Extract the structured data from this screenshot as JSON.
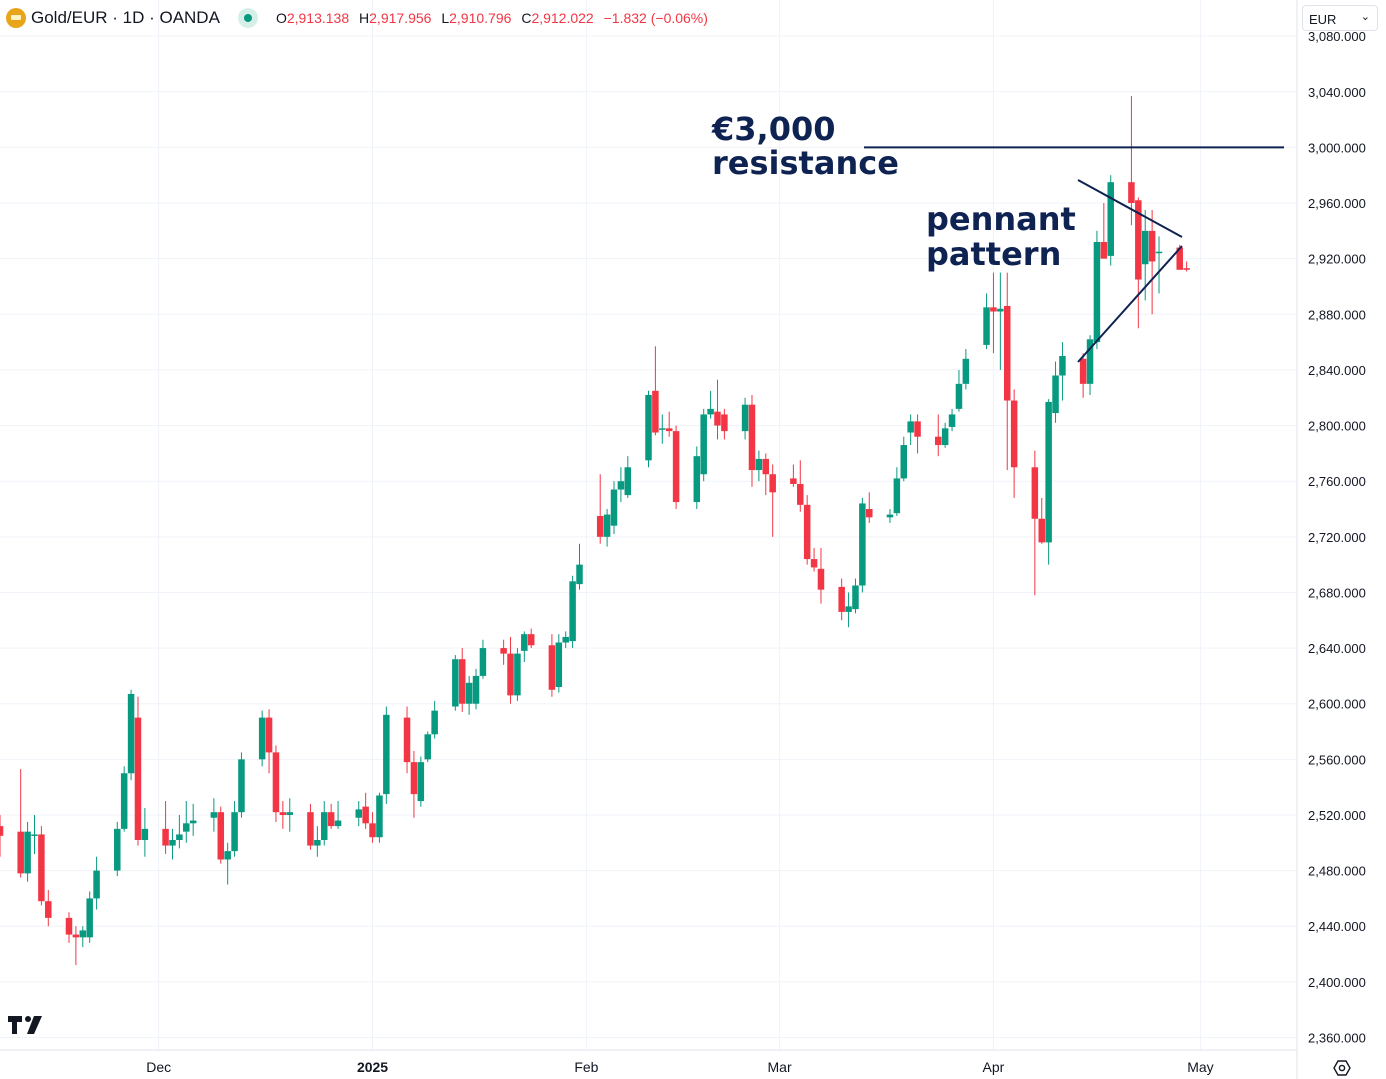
{
  "header": {
    "symbol_title": "Gold/EUR · 1D · OANDA",
    "open_label": "O",
    "open_value": "2,913.138",
    "high_label": "H",
    "high_value": "2,917.956",
    "low_label": "L",
    "low_value": "2,910.796",
    "close_label": "C",
    "close_value": "2,912.022",
    "change": "−1.832 (−0.06%)"
  },
  "currency_selector": {
    "value": "EUR"
  },
  "colors": {
    "up": "#089981",
    "down": "#f23645",
    "annotation": "#0f2353",
    "grid": "#f0f3fa",
    "axis_text": "#131722"
  },
  "icons": {
    "logo": "gold-coin-icon",
    "status": "market-status-icon",
    "brand": "tradingview-logo-icon",
    "settings": "settings-gear-icon",
    "dropdown": "chevron-down-icon"
  },
  "chart_data": {
    "type": "candlestick",
    "y_axis_labels": [
      "3,080.000",
      "3,040.000",
      "3,000.000",
      "2,960.000",
      "2,920.000",
      "2,880.000",
      "2,840.000",
      "2,800.000",
      "2,760.000",
      "2,720.000",
      "2,680.000",
      "2,640.000",
      "2,600.000",
      "2,560.000",
      "2,520.000",
      "2,480.000",
      "2,440.000",
      "2,400.000",
      "2,360.000"
    ],
    "y_ticks": [
      3080,
      3040,
      3000,
      2960,
      2920,
      2880,
      2840,
      2800,
      2760,
      2720,
      2680,
      2640,
      2600,
      2560,
      2520,
      2480,
      2440,
      2400,
      2360
    ],
    "ylim": [
      2351,
      3106
    ],
    "x_labels": [
      {
        "text": "Dec",
        "date": "2024-12-01",
        "bold": false
      },
      {
        "text": "2025",
        "date": "2025-01-01",
        "bold": true
      },
      {
        "text": "Feb",
        "date": "2025-02-01",
        "bold": false
      },
      {
        "text": "Mar",
        "date": "2025-03-01",
        "bold": false
      },
      {
        "text": "Apr",
        "date": "2025-04-01",
        "bold": false
      },
      {
        "text": "May",
        "date": "2025-05-01",
        "bold": false
      }
    ],
    "xlim": [
      "2024-11-08",
      "2025-05-15"
    ],
    "candles": [
      {
        "date": "2024-11-08",
        "o": 2512,
        "h": 2520,
        "l": 2490,
        "c": 2505
      },
      {
        "date": "2024-11-11",
        "o": 2508,
        "h": 2553,
        "l": 2475,
        "c": 2478
      },
      {
        "date": "2024-11-12",
        "o": 2478,
        "h": 2515,
        "l": 2472,
        "c": 2508
      },
      {
        "date": "2024-11-13",
        "o": 2505,
        "h": 2520,
        "l": 2492,
        "c": 2506
      },
      {
        "date": "2024-11-14",
        "o": 2506,
        "h": 2512,
        "l": 2455,
        "c": 2458
      },
      {
        "date": "2024-11-15",
        "o": 2458,
        "h": 2466,
        "l": 2440,
        "c": 2446
      },
      {
        "date": "2024-11-18",
        "o": 2446,
        "h": 2450,
        "l": 2428,
        "c": 2434
      },
      {
        "date": "2024-11-19",
        "o": 2434,
        "h": 2440,
        "l": 2412,
        "c": 2432
      },
      {
        "date": "2024-11-20",
        "o": 2432,
        "h": 2440,
        "l": 2425,
        "c": 2437
      },
      {
        "date": "2024-11-21",
        "o": 2432,
        "h": 2465,
        "l": 2428,
        "c": 2460
      },
      {
        "date": "2024-11-22",
        "o": 2460,
        "h": 2490,
        "l": 2452,
        "c": 2480
      },
      {
        "date": "2024-11-25",
        "o": 2480,
        "h": 2515,
        "l": 2476,
        "c": 2510
      },
      {
        "date": "2024-11-26",
        "o": 2510,
        "h": 2555,
        "l": 2508,
        "c": 2550
      },
      {
        "date": "2024-11-27",
        "o": 2550,
        "h": 2610,
        "l": 2545,
        "c": 2607
      },
      {
        "date": "2024-11-28",
        "o": 2590,
        "h": 2605,
        "l": 2498,
        "c": 2502
      },
      {
        "date": "2024-11-29",
        "o": 2502,
        "h": 2525,
        "l": 2490,
        "c": 2510
      },
      {
        "date": "2024-12-02",
        "o": 2510,
        "h": 2530,
        "l": 2492,
        "c": 2498
      },
      {
        "date": "2024-12-03",
        "o": 2498,
        "h": 2510,
        "l": 2488,
        "c": 2502
      },
      {
        "date": "2024-12-04",
        "o": 2502,
        "h": 2520,
        "l": 2496,
        "c": 2506
      },
      {
        "date": "2024-12-05",
        "o": 2508,
        "h": 2530,
        "l": 2500,
        "c": 2514
      },
      {
        "date": "2024-12-06",
        "o": 2514,
        "h": 2528,
        "l": 2505,
        "c": 2516
      },
      {
        "date": "2024-12-09",
        "o": 2518,
        "h": 2532,
        "l": 2508,
        "c": 2522
      },
      {
        "date": "2024-12-10",
        "o": 2522,
        "h": 2526,
        "l": 2485,
        "c": 2488
      },
      {
        "date": "2024-12-11",
        "o": 2488,
        "h": 2500,
        "l": 2470,
        "c": 2494
      },
      {
        "date": "2024-12-12",
        "o": 2494,
        "h": 2530,
        "l": 2490,
        "c": 2522
      },
      {
        "date": "2024-12-13",
        "o": 2522,
        "h": 2565,
        "l": 2518,
        "c": 2560
      },
      {
        "date": "2024-12-16",
        "o": 2560,
        "h": 2595,
        "l": 2555,
        "c": 2590
      },
      {
        "date": "2024-12-17",
        "o": 2590,
        "h": 2596,
        "l": 2550,
        "c": 2565
      },
      {
        "date": "2024-12-18",
        "o": 2565,
        "h": 2570,
        "l": 2515,
        "c": 2522
      },
      {
        "date": "2024-12-19",
        "o": 2522,
        "h": 2530,
        "l": 2510,
        "c": 2520
      },
      {
        "date": "2024-12-20",
        "o": 2520,
        "h": 2532,
        "l": 2508,
        "c": 2522
      },
      {
        "date": "2024-12-23",
        "o": 2522,
        "h": 2528,
        "l": 2495,
        "c": 2498
      },
      {
        "date": "2024-12-24",
        "o": 2498,
        "h": 2512,
        "l": 2490,
        "c": 2502
      },
      {
        "date": "2024-12-25",
        "o": 2502,
        "h": 2530,
        "l": 2498,
        "c": 2522
      },
      {
        "date": "2024-12-26",
        "o": 2522,
        "h": 2528,
        "l": 2510,
        "c": 2512
      },
      {
        "date": "2024-12-27",
        "o": 2512,
        "h": 2530,
        "l": 2510,
        "c": 2516
      },
      {
        "date": "2024-12-30",
        "o": 2518,
        "h": 2530,
        "l": 2512,
        "c": 2524
      },
      {
        "date": "2024-12-31",
        "o": 2526,
        "h": 2536,
        "l": 2510,
        "c": 2514
      },
      {
        "date": "2025-01-01",
        "o": 2514,
        "h": 2522,
        "l": 2500,
        "c": 2504
      },
      {
        "date": "2025-01-02",
        "o": 2504,
        "h": 2536,
        "l": 2500,
        "c": 2534
      },
      {
        "date": "2025-01-03",
        "o": 2535,
        "h": 2598,
        "l": 2528,
        "c": 2592
      },
      {
        "date": "2025-01-06",
        "o": 2590,
        "h": 2598,
        "l": 2550,
        "c": 2558
      },
      {
        "date": "2025-01-07",
        "o": 2558,
        "h": 2566,
        "l": 2518,
        "c": 2535
      },
      {
        "date": "2025-01-08",
        "o": 2530,
        "h": 2562,
        "l": 2526,
        "c": 2558
      },
      {
        "date": "2025-01-09",
        "o": 2560,
        "h": 2580,
        "l": 2558,
        "c": 2578
      },
      {
        "date": "2025-01-10",
        "o": 2578,
        "h": 2602,
        "l": 2575,
        "c": 2595
      },
      {
        "date": "2025-01-13",
        "o": 2598,
        "h": 2635,
        "l": 2595,
        "c": 2632
      },
      {
        "date": "2025-01-14",
        "o": 2632,
        "h": 2640,
        "l": 2594,
        "c": 2600
      },
      {
        "date": "2025-01-15",
        "o": 2600,
        "h": 2620,
        "l": 2592,
        "c": 2615
      },
      {
        "date": "2025-01-16",
        "o": 2600,
        "h": 2625,
        "l": 2596,
        "c": 2620
      },
      {
        "date": "2025-01-17",
        "o": 2620,
        "h": 2646,
        "l": 2618,
        "c": 2640
      },
      {
        "date": "2025-01-20",
        "o": 2640,
        "h": 2646,
        "l": 2628,
        "c": 2636
      },
      {
        "date": "2025-01-21",
        "o": 2636,
        "h": 2648,
        "l": 2600,
        "c": 2606
      },
      {
        "date": "2025-01-22",
        "o": 2606,
        "h": 2640,
        "l": 2602,
        "c": 2636
      },
      {
        "date": "2025-01-23",
        "o": 2638,
        "h": 2652,
        "l": 2630,
        "c": 2650
      },
      {
        "date": "2025-01-24",
        "o": 2650,
        "h": 2654,
        "l": 2640,
        "c": 2642
      },
      {
        "date": "2025-01-27",
        "o": 2642,
        "h": 2650,
        "l": 2605,
        "c": 2610
      },
      {
        "date": "2025-01-28",
        "o": 2612,
        "h": 2650,
        "l": 2608,
        "c": 2644
      },
      {
        "date": "2025-01-29",
        "o": 2644,
        "h": 2652,
        "l": 2640,
        "c": 2648
      },
      {
        "date": "2025-01-30",
        "o": 2645,
        "h": 2692,
        "l": 2640,
        "c": 2688
      },
      {
        "date": "2025-01-31",
        "o": 2686,
        "h": 2715,
        "l": 2682,
        "c": 2700
      },
      {
        "date": "2025-02-03",
        "o": 2735,
        "h": 2765,
        "l": 2715,
        "c": 2720
      },
      {
        "date": "2025-02-04",
        "o": 2720,
        "h": 2740,
        "l": 2713,
        "c": 2736
      },
      {
        "date": "2025-02-05",
        "o": 2728,
        "h": 2760,
        "l": 2722,
        "c": 2754
      },
      {
        "date": "2025-02-06",
        "o": 2754,
        "h": 2770,
        "l": 2745,
        "c": 2760
      },
      {
        "date": "2025-02-07",
        "o": 2750,
        "h": 2778,
        "l": 2748,
        "c": 2770
      },
      {
        "date": "2025-02-10",
        "o": 2775,
        "h": 2825,
        "l": 2770,
        "c": 2822
      },
      {
        "date": "2025-02-11",
        "o": 2825,
        "h": 2857,
        "l": 2793,
        "c": 2795
      },
      {
        "date": "2025-02-12",
        "o": 2798,
        "h": 2808,
        "l": 2787,
        "c": 2798
      },
      {
        "date": "2025-02-13",
        "o": 2798,
        "h": 2810,
        "l": 2792,
        "c": 2796
      },
      {
        "date": "2025-02-14",
        "o": 2796,
        "h": 2800,
        "l": 2740,
        "c": 2745
      },
      {
        "date": "2025-02-17",
        "o": 2745,
        "h": 2785,
        "l": 2740,
        "c": 2778
      },
      {
        "date": "2025-02-18",
        "o": 2765,
        "h": 2812,
        "l": 2760,
        "c": 2808
      },
      {
        "date": "2025-02-19",
        "o": 2808,
        "h": 2825,
        "l": 2805,
        "c": 2812
      },
      {
        "date": "2025-02-20",
        "o": 2810,
        "h": 2833,
        "l": 2790,
        "c": 2800
      },
      {
        "date": "2025-02-21",
        "o": 2808,
        "h": 2812,
        "l": 2790,
        "c": 2796
      },
      {
        "date": "2025-02-24",
        "o": 2796,
        "h": 2820,
        "l": 2790,
        "c": 2815
      },
      {
        "date": "2025-02-25",
        "o": 2815,
        "h": 2822,
        "l": 2756,
        "c": 2768
      },
      {
        "date": "2025-02-26",
        "o": 2768,
        "h": 2782,
        "l": 2760,
        "c": 2776
      },
      {
        "date": "2025-02-27",
        "o": 2776,
        "h": 2780,
        "l": 2750,
        "c": 2765
      },
      {
        "date": "2025-02-28",
        "o": 2765,
        "h": 2772,
        "l": 2720,
        "c": 2752
      },
      {
        "date": "2025-03-03",
        "o": 2762,
        "h": 2772,
        "l": 2756,
        "c": 2758
      },
      {
        "date": "2025-03-04",
        "o": 2758,
        "h": 2775,
        "l": 2738,
        "c": 2743
      },
      {
        "date": "2025-03-05",
        "o": 2743,
        "h": 2750,
        "l": 2700,
        "c": 2704
      },
      {
        "date": "2025-03-06",
        "o": 2704,
        "h": 2712,
        "l": 2695,
        "c": 2698
      },
      {
        "date": "2025-03-07",
        "o": 2697,
        "h": 2712,
        "l": 2672,
        "c": 2682
      },
      {
        "date": "2025-03-10",
        "o": 2684,
        "h": 2690,
        "l": 2660,
        "c": 2666
      },
      {
        "date": "2025-03-11",
        "o": 2666,
        "h": 2680,
        "l": 2655,
        "c": 2670
      },
      {
        "date": "2025-03-12",
        "o": 2668,
        "h": 2690,
        "l": 2665,
        "c": 2685
      },
      {
        "date": "2025-03-13",
        "o": 2685,
        "h": 2748,
        "l": 2680,
        "c": 2744
      },
      {
        "date": "2025-03-14",
        "o": 2740,
        "h": 2752,
        "l": 2730,
        "c": 2734
      },
      {
        "date": "2025-03-17",
        "o": 2734,
        "h": 2740,
        "l": 2730,
        "c": 2736
      },
      {
        "date": "2025-03-18",
        "o": 2737,
        "h": 2770,
        "l": 2735,
        "c": 2762
      },
      {
        "date": "2025-03-19",
        "o": 2762,
        "h": 2792,
        "l": 2760,
        "c": 2786
      },
      {
        "date": "2025-03-20",
        "o": 2795,
        "h": 2808,
        "l": 2786,
        "c": 2803
      },
      {
        "date": "2025-03-21",
        "o": 2803,
        "h": 2808,
        "l": 2780,
        "c": 2792
      },
      {
        "date": "2025-03-24",
        "o": 2792,
        "h": 2808,
        "l": 2778,
        "c": 2786
      },
      {
        "date": "2025-03-25",
        "o": 2786,
        "h": 2802,
        "l": 2784,
        "c": 2798
      },
      {
        "date": "2025-03-26",
        "o": 2799,
        "h": 2812,
        "l": 2796,
        "c": 2808
      },
      {
        "date": "2025-03-27",
        "o": 2812,
        "h": 2840,
        "l": 2810,
        "c": 2830
      },
      {
        "date": "2025-03-28",
        "o": 2830,
        "h": 2855,
        "l": 2826,
        "c": 2848
      },
      {
        "date": "2025-03-31",
        "o": 2858,
        "h": 2895,
        "l": 2855,
        "c": 2885
      },
      {
        "date": "2025-04-01",
        "o": 2885,
        "h": 2910,
        "l": 2852,
        "c": 2882
      },
      {
        "date": "2025-04-02",
        "o": 2882,
        "h": 2910,
        "l": 2840,
        "c": 2884
      },
      {
        "date": "2025-04-03",
        "o": 2886,
        "h": 2910,
        "l": 2768,
        "c": 2818
      },
      {
        "date": "2025-04-04",
        "o": 2818,
        "h": 2826,
        "l": 2748,
        "c": 2770
      },
      {
        "date": "2025-04-07",
        "o": 2770,
        "h": 2782,
        "l": 2678,
        "c": 2733
      },
      {
        "date": "2025-04-08",
        "o": 2733,
        "h": 2748,
        "l": 2715,
        "c": 2716
      },
      {
        "date": "2025-04-09",
        "o": 2716,
        "h": 2819,
        "l": 2700,
        "c": 2817
      },
      {
        "date": "2025-04-10",
        "o": 2809,
        "h": 2846,
        "l": 2802,
        "c": 2836
      },
      {
        "date": "2025-04-11",
        "o": 2836,
        "h": 2860,
        "l": 2818,
        "c": 2850
      },
      {
        "date": "2025-04-14",
        "o": 2848,
        "h": 2852,
        "l": 2820,
        "c": 2830
      },
      {
        "date": "2025-04-15",
        "o": 2830,
        "h": 2865,
        "l": 2822,
        "c": 2862
      },
      {
        "date": "2025-04-16",
        "o": 2860,
        "h": 2940,
        "l": 2855,
        "c": 2932
      },
      {
        "date": "2025-04-17",
        "o": 2932,
        "h": 2960,
        "l": 2922,
        "c": 2920
      },
      {
        "date": "2025-04-18",
        "o": 2922,
        "h": 2980,
        "l": 2915,
        "c": 2975
      },
      {
        "date": "2025-04-21",
        "o": 2975,
        "h": 3037,
        "l": 2944,
        "c": 2960
      },
      {
        "date": "2025-04-22",
        "o": 2962,
        "h": 2964,
        "l": 2870,
        "c": 2905
      },
      {
        "date": "2025-04-23",
        "o": 2916,
        "h": 2955,
        "l": 2890,
        "c": 2940
      },
      {
        "date": "2025-04-24",
        "o": 2940,
        "h": 2955,
        "l": 2880,
        "c": 2918
      },
      {
        "date": "2025-04-25",
        "o": 2925,
        "h": 2936,
        "l": 2895,
        "c": 2925
      },
      {
        "date": "2025-04-28",
        "o": 2928,
        "h": 2930,
        "l": 2912,
        "c": 2912
      },
      {
        "date": "2025-04-29",
        "o": 2913.138,
        "h": 2917.956,
        "l": 2910.796,
        "c": 2912.022
      }
    ],
    "annotations": [
      {
        "text": [
          "€3,000",
          "resistance"
        ],
        "type": "horizontal-line",
        "value": 3000
      },
      {
        "text": [
          "pennant",
          "pattern"
        ],
        "type": "pennant"
      }
    ],
    "grid": true
  }
}
